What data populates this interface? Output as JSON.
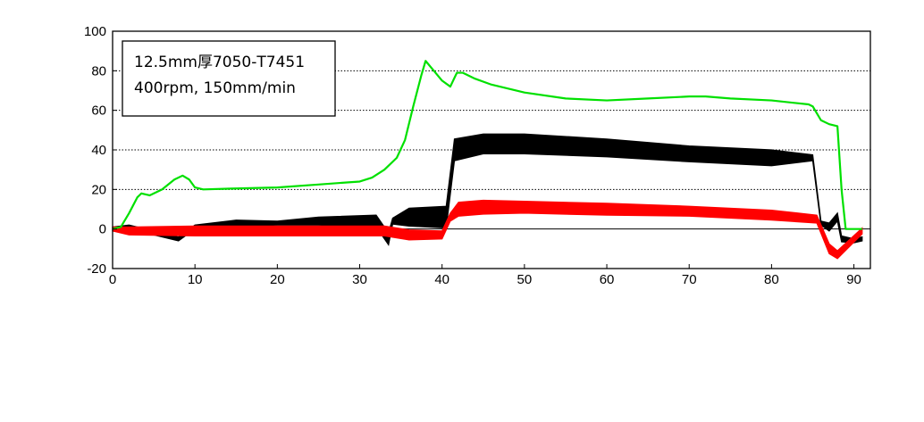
{
  "chart_data": {
    "type": "line",
    "title": "",
    "xlabel": "",
    "ylabel": "",
    "xlim": [
      0,
      92
    ],
    "ylim": [
      -20,
      100
    ],
    "x_ticks": [
      0,
      10,
      20,
      30,
      40,
      50,
      60,
      70,
      80,
      90
    ],
    "y_ticks": [
      -20,
      0,
      20,
      40,
      60,
      80,
      100
    ],
    "grid": "horizontal dotted",
    "annotation": {
      "line1": "12.5mm厚7050-T7451",
      "line2": "400rpm, 150mm/min"
    },
    "series": [
      {
        "color": "#00e000",
        "x": [
          0,
          1,
          2,
          3,
          3.5,
          4.5,
          6,
          7.5,
          8.5,
          9.3,
          10,
          11,
          15,
          20,
          25,
          30,
          31.5,
          33,
          34.5,
          35.5,
          36.5,
          37.5,
          38,
          39,
          40,
          41,
          41.8,
          42.5,
          44,
          46,
          50,
          55,
          60,
          65,
          70,
          72,
          75,
          80,
          84.5,
          85,
          86,
          87,
          88,
          88.5,
          89,
          90,
          91
        ],
        "y": [
          0,
          1,
          8,
          16,
          18,
          17,
          20,
          25,
          27,
          25,
          21,
          20,
          20.5,
          21,
          22.5,
          24,
          26,
          30,
          36,
          45,
          62,
          78,
          85,
          80,
          75,
          72,
          79,
          79,
          76,
          73,
          69,
          66,
          65,
          66,
          67,
          67,
          66,
          65,
          63,
          62,
          55,
          53,
          52,
          20,
          0,
          0,
          0
        ]
      },
      {
        "color": "#000000",
        "band_width": [
          2,
          2,
          2,
          2,
          3,
          2,
          4,
          6,
          6,
          3,
          9,
          11,
          11,
          10,
          10,
          9,
          8,
          8,
          3,
          2,
          4,
          4,
          3,
          2,
          2
        ],
        "x": [
          0,
          2,
          8,
          10,
          15,
          20,
          25,
          32,
          33.5,
          34,
          36,
          40.5,
          41.5,
          45,
          50,
          60,
          70,
          80,
          85,
          86,
          87,
          88,
          88.5,
          90,
          91
        ],
        "y": [
          0,
          1,
          -5,
          1,
          3,
          3,
          4,
          4,
          -5,
          4,
          6,
          6,
          40,
          43,
          43,
          41,
          38,
          36,
          36,
          3,
          1,
          6,
          -5,
          -6,
          -5
        ]
      },
      {
        "color": "#ff0000",
        "band_width": [
          2,
          4,
          5,
          5,
          5,
          5,
          5,
          4,
          4,
          7,
          7,
          6,
          6,
          5,
          5,
          4,
          5,
          4,
          3
        ],
        "x": [
          0,
          2,
          10,
          20,
          30,
          33,
          36,
          40,
          41,
          42,
          45,
          50,
          60,
          70,
          80,
          85.5,
          87,
          88,
          91
        ],
        "y": [
          0,
          -1,
          -1,
          -1,
          -1,
          -1,
          -3,
          -3,
          6,
          10,
          11,
          11,
          10,
          9,
          7,
          5,
          -10,
          -13,
          -1
        ]
      }
    ]
  }
}
